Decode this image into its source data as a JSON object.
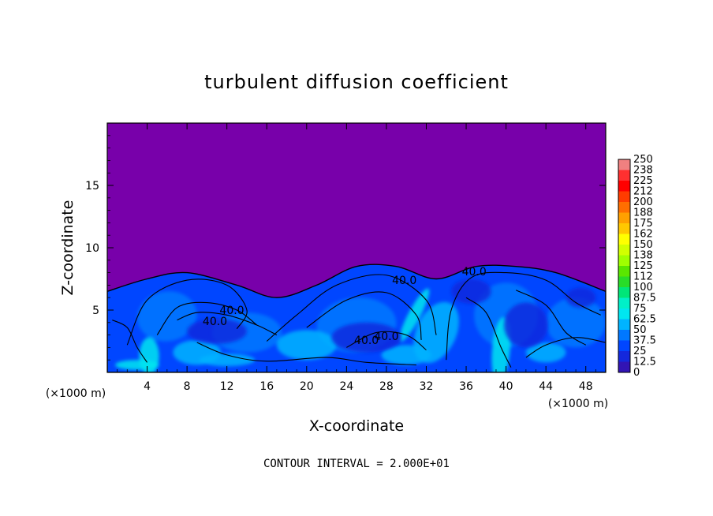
{
  "chart_data": {
    "type": "heatmap",
    "title": "turbulent diffusion coefficient",
    "xlabel": "X-coordinate",
    "ylabel": "Z-coordinate",
    "x_unit_left": "(×1000 m)",
    "x_unit_right": "(×1000 m)",
    "xlim": [
      0,
      50
    ],
    "ylim": [
      0,
      20
    ],
    "x_ticks": [
      4,
      8,
      12,
      16,
      20,
      24,
      28,
      32,
      36,
      40,
      44,
      48
    ],
    "y_ticks": [
      5,
      10,
      15
    ],
    "colorbar": {
      "levels": [
        "250",
        "238",
        "225",
        "212",
        "200",
        "188",
        "175",
        "162",
        "150",
        "138",
        "125",
        "112",
        "100",
        "87.5",
        "75",
        "62.5",
        "50",
        "37.5",
        "25",
        "12.5",
        "0"
      ],
      "colors": [
        "#f08080",
        "#ff3030",
        "#ff0000",
        "#ff3c00",
        "#ff6e00",
        "#ffa000",
        "#ffc800",
        "#ffff00",
        "#d2ff00",
        "#a0ff00",
        "#5ae600",
        "#28dc28",
        "#00e678",
        "#00f0c8",
        "#00e6f0",
        "#00b4ff",
        "#0078ff",
        "#0046ff",
        "#1428dc",
        "#3214b4",
        "#7800aa"
      ]
    },
    "background_value": 0,
    "turbulent_layer_top_z": [
      6.5,
      7.5,
      8.0,
      7.0,
      6.0,
      7.0,
      8.5,
      8.5,
      7.5,
      8.5,
      8.5,
      8.0,
      6.5
    ],
    "turbulent_layer_x": [
      0,
      4,
      8,
      13,
      17,
      21,
      25,
      29,
      33,
      37,
      41,
      45,
      50
    ],
    "contour_labels": [
      {
        "text": "40.0",
        "x": 12.5,
        "z": 5.0
      },
      {
        "text": "40.0",
        "x": 10.8,
        "z": 4.1
      },
      {
        "text": "40.0",
        "x": 29.8,
        "z": 7.4
      },
      {
        "text": "40.0",
        "x": 36.8,
        "z": 8.1
      },
      {
        "text": "40.0",
        "x": 26.0,
        "z": 2.6
      },
      {
        "text": "40.0",
        "x": 28.0,
        "z": 2.9
      }
    ],
    "footer": "CONTOUR INTERVAL = 2.000E+01"
  }
}
